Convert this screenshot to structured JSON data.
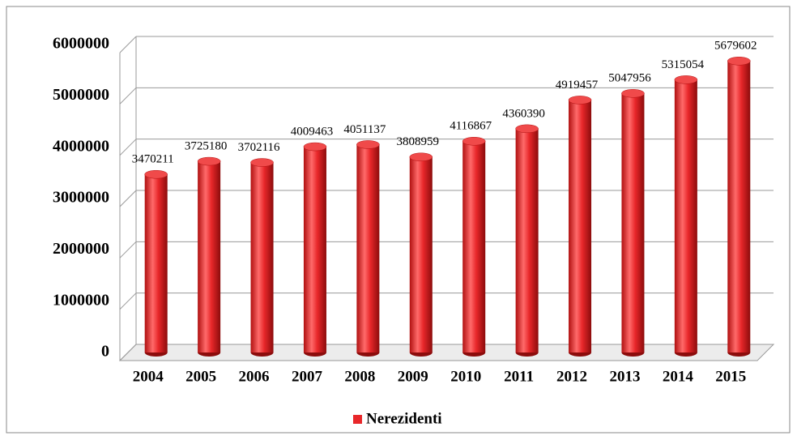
{
  "chart_data": {
    "type": "bar",
    "categories": [
      "2004",
      "2005",
      "2006",
      "2007",
      "2008",
      "2009",
      "2010",
      "2011",
      "2012",
      "2013",
      "2014",
      "2015"
    ],
    "series": [
      {
        "name": "Nerezidenti",
        "color": "#e8272a",
        "values": [
          3470211,
          3725180,
          3702116,
          4009463,
          4051137,
          3808959,
          4116867,
          4360390,
          4919457,
          5047956,
          5315054,
          5679602
        ]
      }
    ],
    "ylim": [
      0,
      6000000
    ],
    "yticks": [
      0,
      1000000,
      2000000,
      3000000,
      4000000,
      5000000,
      6000000
    ],
    "grid": true,
    "legend": "bottom"
  }
}
